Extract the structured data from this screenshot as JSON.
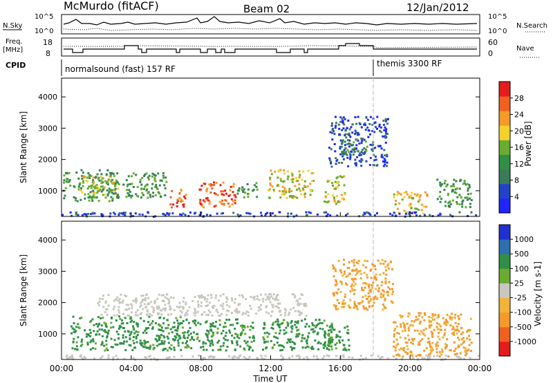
{
  "header": {
    "station": "McMurdo (fitACF)",
    "beam": "Beam 02",
    "date": "12/Jan/2012"
  },
  "strip_labels": {
    "nsky": "N.Sky",
    "nsearch": "N.Search",
    "freq_line1": "Freq.",
    "freq_line2": "[MHz]",
    "nave": "Nave",
    "cpid": "CPID",
    "nsky_hi": "10^5",
    "nsky_lo": "10^0",
    "nsearch_hi": "10^5",
    "nsearch_lo": "10^0",
    "freq_hi": "18",
    "freq_lo": "8",
    "nave_hi": "60",
    "nave_lo": "0"
  },
  "cpid_segments": [
    {
      "label": "normalsound (fast) 157 RF",
      "start_h": 0,
      "end_h": 18
    },
    {
      "label": "themis 3300 RF",
      "start_h": 18,
      "end_h": 24
    }
  ],
  "colors": {
    "power": [
      "#1f23ff",
      "#2043c8",
      "#3a7c59",
      "#2f8f46",
      "#6aac2f",
      "#f3d22a",
      "#f39a2a",
      "#f06020",
      "#e41c1c"
    ],
    "velocity": [
      "#e41c1c",
      "#f06020",
      "#f39a2a",
      "#f3b33a",
      "#c8c8c0",
      "#6aac2f",
      "#2f8f46",
      "#2d6fb0",
      "#1f30cc"
    ]
  },
  "chart_data": [
    {
      "type": "heatmap",
      "title": "",
      "xlabel": "Time UT",
      "ylabel": "Slant Range [km]",
      "xlim": [
        0,
        24
      ],
      "ylim": [
        180,
        4600
      ],
      "x_ticks": [
        "00:00",
        "04:00",
        "08:00",
        "12:00",
        "16:00",
        "20:00",
        "00:00"
      ],
      "y_ticks": [
        "1000",
        "2000",
        "3000",
        "4000"
      ],
      "y_tick_values": [
        1000,
        2000,
        3000,
        4000
      ],
      "colorbar_label": "Power [dB]",
      "colorbar_ticks": [
        "4",
        "8",
        "12",
        "16",
        "20",
        "24",
        "28"
      ],
      "colorbar_range": [
        0,
        30
      ],
      "echo_regions": [
        {
          "t": [
            0,
            3.0
          ],
          "r": [
            700,
            1700
          ],
          "level": "mid"
        },
        {
          "t": [
            1.0,
            3.2
          ],
          "r": [
            900,
            1500
          ],
          "level": "high"
        },
        {
          "t": [
            3.0,
            6.0
          ],
          "r": [
            800,
            1600
          ],
          "level": "mid"
        },
        {
          "t": [
            6.2,
            7.2
          ],
          "r": [
            500,
            1100
          ],
          "level": "peak"
        },
        {
          "t": [
            7.8,
            10.0
          ],
          "r": [
            500,
            1300
          ],
          "level": "peak"
        },
        {
          "t": [
            10.0,
            11.2
          ],
          "r": [
            800,
            1300
          ],
          "level": "mid"
        },
        {
          "t": [
            11.8,
            14.5
          ],
          "r": [
            800,
            1700
          ],
          "level": "high"
        },
        {
          "t": [
            15.0,
            16.3
          ],
          "r": [
            600,
            1500
          ],
          "level": "high"
        },
        {
          "t": [
            15.3,
            18.7
          ],
          "r": [
            1800,
            3400
          ],
          "level": "low"
        },
        {
          "t": [
            16.0,
            17.5
          ],
          "r": [
            2200,
            2700
          ],
          "level": "mid"
        },
        {
          "t": [
            19.0,
            21.0
          ],
          "r": [
            300,
            1000
          ],
          "level": "high"
        },
        {
          "t": [
            21.5,
            23.5
          ],
          "r": [
            500,
            1400
          ],
          "level": "mid"
        },
        {
          "t": [
            0,
            24
          ],
          "r": [
            200,
            350
          ],
          "level": "low"
        }
      ]
    },
    {
      "type": "heatmap",
      "title": "",
      "xlabel": "Time UT",
      "ylabel": "Slant Range [km]",
      "xlim": [
        0,
        24
      ],
      "ylim": [
        180,
        4600
      ],
      "x_ticks": [
        "00:00",
        "04:00",
        "08:00",
        "12:00",
        "16:00",
        "20:00",
        "00:00"
      ],
      "y_ticks": [
        "1000",
        "2000",
        "3000",
        "4000"
      ],
      "y_tick_values": [
        1000,
        2000,
        3000,
        4000
      ],
      "colorbar_label": "Velocity [m s-1]",
      "colorbar_ticks": [
        "1000",
        "500",
        "100",
        "25",
        "-25",
        "-100",
        "-500",
        "-1000"
      ],
      "echo_regions": [
        {
          "t": [
            0.5,
            7.0
          ],
          "r": [
            500,
            1600
          ],
          "class": "positive"
        },
        {
          "t": [
            7.0,
            11.0
          ],
          "r": [
            500,
            1500
          ],
          "class": "positive"
        },
        {
          "t": [
            11.5,
            15.5
          ],
          "r": [
            500,
            1500
          ],
          "class": "positive"
        },
        {
          "t": [
            15.0,
            16.5
          ],
          "r": [
            500,
            1300
          ],
          "class": "positive"
        },
        {
          "t": [
            15.5,
            19.0
          ],
          "r": [
            1800,
            3400
          ],
          "class": "negative"
        },
        {
          "t": [
            19.0,
            23.5
          ],
          "r": [
            300,
            1700
          ],
          "class": "negative"
        },
        {
          "t": [
            2.0,
            14.0
          ],
          "r": [
            1600,
            2300
          ],
          "class": "ground"
        },
        {
          "t": [
            0,
            24
          ],
          "r": [
            200,
            350
          ],
          "class": "ground"
        }
      ]
    }
  ]
}
